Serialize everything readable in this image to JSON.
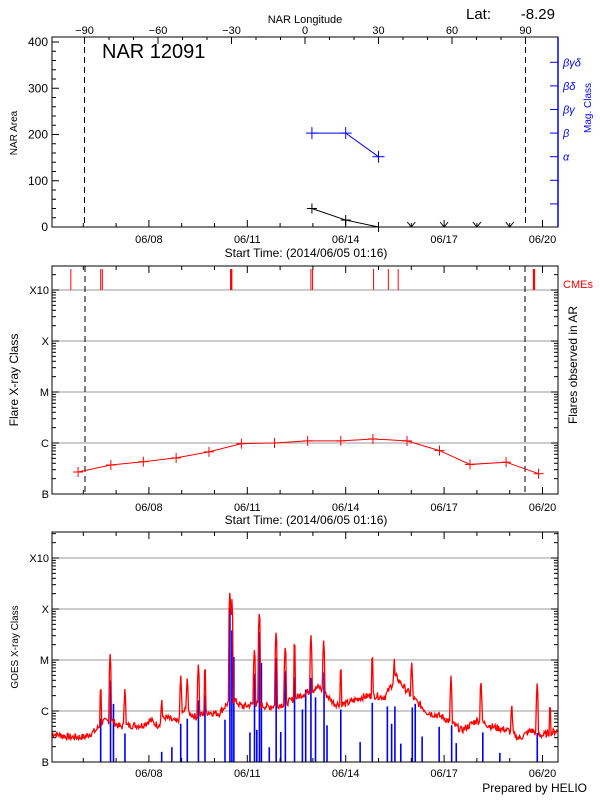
{
  "chart_data": [
    {
      "type": "line",
      "panel": "nar",
      "title": "NAR 12091",
      "latitude_label": "Lat:",
      "latitude_value": "-8.29",
      "top_axis_label": "NAR Longitude",
      "top_ticks": [
        "-90",
        "-60",
        "-30",
        "0",
        "30",
        "60",
        "90"
      ],
      "ylabel": "NAR Area",
      "ylim": [
        0,
        400
      ],
      "yticks": [
        "0",
        "100",
        "200",
        "300",
        "400"
      ],
      "y2label": "Mag. Class",
      "mag_classes": [
        "α",
        "β",
        "βγ",
        "βδ",
        "βγδ"
      ],
      "xlabel": "Start Time: (2014/06/05 01:16)",
      "xticks": [
        "06/08",
        "06/11",
        "06/14",
        "06/17",
        "06/20"
      ],
      "limb_longitudes": [
        -90,
        90
      ],
      "area_series": [
        {
          "day": 12.97,
          "value": 40
        },
        {
          "day": 14.0,
          "value": 15
        },
        {
          "day": 15.0,
          "value": 0
        }
      ],
      "no_data_days": [
        16,
        17,
        18,
        19
      ],
      "mag_series": [
        {
          "day": 12.97,
          "class": "β"
        },
        {
          "day": 14.0,
          "class": "β"
        },
        {
          "day": 15.0,
          "class": "α"
        }
      ]
    },
    {
      "type": "line",
      "panel": "flares",
      "ylabel": "Flare X-ray Class",
      "y2label": "Flares observed in AR",
      "cme_label": "CMEs",
      "yticks": [
        "B",
        "C",
        "M",
        "X",
        "X10"
      ],
      "xlabel": "Start Time: (2014/06/05 01:16)",
      "xticks": [
        "06/08",
        "06/11",
        "06/14",
        "06/17",
        "06/20"
      ],
      "flares": [
        {
          "day": 5.84,
          "class": "B2.7"
        },
        {
          "day": 6.84,
          "class": "B3.7"
        },
        {
          "day": 7.83,
          "class": "B4.3"
        },
        {
          "day": 8.83,
          "class": "B5.1"
        },
        {
          "day": 9.83,
          "class": "B6.7"
        },
        {
          "day": 10.82,
          "class": "B9.7"
        },
        {
          "day": 11.83,
          "class": "C1.0"
        },
        {
          "day": 12.84,
          "class": "C1.1"
        },
        {
          "day": 13.85,
          "class": "C1.1"
        },
        {
          "day": 14.83,
          "class": "C1.2"
        },
        {
          "day": 15.87,
          "class": "C1.1"
        },
        {
          "day": 16.86,
          "class": "B7.1"
        },
        {
          "day": 17.79,
          "class": "B3.8"
        },
        {
          "day": 18.89,
          "class": "B4.2"
        },
        {
          "day": 19.88,
          "class": "B2.5"
        }
      ],
      "cmes": [
        5.62,
        6.53,
        6.58,
        10.49,
        10.51,
        10.53,
        12.94,
        12.99,
        14.85,
        15.3,
        15.6,
        19.72,
        19.74,
        19.76
      ]
    },
    {
      "type": "line",
      "panel": "goes",
      "ylabel": "GOES X-ray Class",
      "yticks": [
        "B",
        "C",
        "M",
        "X",
        "X10"
      ],
      "xticks": [
        "06/08",
        "06/11",
        "06/14",
        "06/17",
        "06/20"
      ],
      "footer": "Prepared by HELIO",
      "red_baseline_log_flux": [
        [
          5.04,
          -6.44
        ],
        [
          5.57,
          -6.51
        ],
        [
          6.04,
          -6.51
        ],
        [
          6.39,
          -6.38
        ],
        [
          6.57,
          -6.22
        ],
        [
          6.86,
          -6.18
        ],
        [
          7.1,
          -6.31
        ],
        [
          7.45,
          -6.28
        ],
        [
          7.8,
          -6.28
        ],
        [
          8.03,
          -6.18
        ],
        [
          8.27,
          -6.28
        ],
        [
          8.5,
          -6.12
        ],
        [
          8.85,
          -6.22
        ],
        [
          9.09,
          -5.99
        ],
        [
          9.44,
          -6.12
        ],
        [
          9.79,
          -6.02
        ],
        [
          10.14,
          -6.05
        ],
        [
          10.38,
          -5.86
        ],
        [
          10.61,
          -5.79
        ],
        [
          10.85,
          -5.92
        ],
        [
          11.2,
          -5.86
        ],
        [
          11.67,
          -5.92
        ],
        [
          12.14,
          -5.86
        ],
        [
          12.72,
          -5.66
        ],
        [
          13.19,
          -5.53
        ],
        [
          13.66,
          -5.86
        ],
        [
          14.01,
          -5.86
        ],
        [
          14.48,
          -5.73
        ],
        [
          14.83,
          -5.69
        ],
        [
          15.19,
          -5.73
        ],
        [
          15.54,
          -5.33
        ],
        [
          15.77,
          -5.53
        ],
        [
          16.12,
          -5.79
        ],
        [
          16.48,
          -6.02
        ],
        [
          16.96,
          -6.12
        ],
        [
          17.54,
          -6.38
        ],
        [
          18.01,
          -6.18
        ],
        [
          18.48,
          -6.31
        ],
        [
          18.95,
          -6.38
        ],
        [
          19.29,
          -6.54
        ],
        [
          19.64,
          -6.38
        ],
        [
          19.99,
          -6.48
        ],
        [
          20.49,
          -6.38
        ]
      ],
      "red_peaks_log_flux": [
        [
          6.53,
          -5.43
        ],
        [
          6.82,
          -4.84
        ],
        [
          7.27,
          -5.5
        ],
        [
          8.39,
          -5.69
        ],
        [
          8.97,
          -5.27
        ],
        [
          9.17,
          -5.28
        ],
        [
          9.51,
          -5.03
        ],
        [
          9.71,
          -5.04
        ],
        [
          10.47,
          -3.63
        ],
        [
          10.53,
          -3.8
        ],
        [
          11.22,
          -4.71
        ],
        [
          11.37,
          -3.99
        ],
        [
          11.88,
          -4.39
        ],
        [
          12.16,
          -4.65
        ],
        [
          12.44,
          -4.55
        ],
        [
          12.94,
          -4.48
        ],
        [
          13.33,
          -4.56
        ],
        [
          13.85,
          -5.04
        ],
        [
          14.81,
          -4.81
        ],
        [
          15.48,
          -4.95
        ],
        [
          16.01,
          -4.97
        ],
        [
          17.21,
          -5.3
        ],
        [
          18.12,
          -5.33
        ],
        [
          19.06,
          -5.79
        ],
        [
          19.84,
          -5.39
        ],
        [
          20.23,
          -5.78
        ]
      ],
      "blue_spikes_log_flux": [
        [
          6.53,
          -6.15
        ],
        [
          6.83,
          -5.4
        ],
        [
          6.92,
          -5.86
        ],
        [
          7.27,
          -6.44
        ],
        [
          8.39,
          -6.8
        ],
        [
          8.7,
          -6.71
        ],
        [
          8.97,
          -6.25
        ],
        [
          9.17,
          -6.15
        ],
        [
          9.51,
          -5.79
        ],
        [
          9.71,
          -5.69
        ],
        [
          10.32,
          -6.17
        ],
        [
          10.47,
          -3.97
        ],
        [
          10.53,
          -4.42
        ],
        [
          10.59,
          -4.94
        ],
        [
          11.08,
          -6.42
        ],
        [
          11.22,
          -5.27
        ],
        [
          11.29,
          -6.37
        ],
        [
          11.37,
          -4.45
        ],
        [
          11.43,
          -5.06
        ],
        [
          11.67,
          -6.71
        ],
        [
          11.88,
          -4.96
        ],
        [
          12.02,
          -6.41
        ],
        [
          12.16,
          -5.22
        ],
        [
          12.44,
          -5.33
        ],
        [
          12.68,
          -5.97
        ],
        [
          12.78,
          -5.58
        ],
        [
          12.94,
          -5.35
        ],
        [
          13.08,
          -5.73
        ],
        [
          13.34,
          -5.24
        ],
        [
          13.43,
          -6.28
        ],
        [
          13.85,
          -5.97
        ],
        [
          14.44,
          -6.61
        ],
        [
          14.81,
          -5.84
        ],
        [
          15.27,
          -5.91
        ],
        [
          15.4,
          -6.25
        ],
        [
          15.5,
          -5.91
        ],
        [
          15.68,
          -6.64
        ],
        [
          16.03,
          -5.93
        ],
        [
          16.12,
          -5.86
        ],
        [
          16.33,
          -6.5
        ],
        [
          16.85,
          -6.31
        ],
        [
          17.23,
          -6.28
        ],
        [
          17.37,
          -6.63
        ],
        [
          18.18,
          -6.42
        ],
        [
          18.7,
          -6.82
        ],
        [
          19.84,
          -6.43
        ]
      ]
    }
  ],
  "colors": {
    "flux": "#ff0000",
    "flux_short": "#0000ff",
    "mag": "#0000ff",
    "grid": "#999999",
    "cme": "#ff0000"
  }
}
